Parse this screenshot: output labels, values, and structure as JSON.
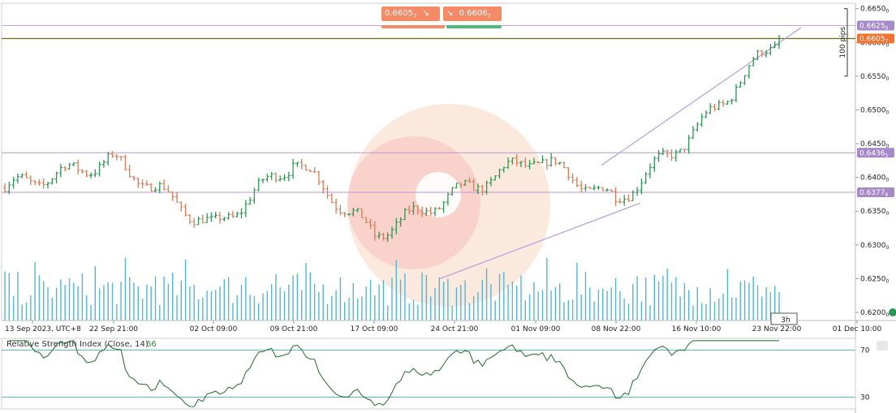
{
  "quote": {
    "sell_price": "0.6605",
    "sell_price_sup": "7",
    "buy_price": "0.6606",
    "buy_price_sup": "7",
    "sell_color": "#f58a67",
    "buy_color": "#f58a67",
    "sell_bar_color": "#f58a67",
    "buy_bar_color": "#4cba7a"
  },
  "price_labels": [
    {
      "price": 0.6625,
      "text": "0.6625",
      "sup": "0",
      "color": "#a68ac8"
    },
    {
      "price": 0.66057,
      "text": "0.6605",
      "sup": "7",
      "color": "#f2732e"
    },
    {
      "price": 0.64365,
      "text": "0.6436",
      "sup": "5",
      "color": "#a68ac8"
    },
    {
      "price": 0.63779,
      "text": "0.6377",
      "sup": "9",
      "color": "#a68ac8"
    }
  ],
  "y_ticks": [
    {
      "v": 0.665,
      "t": "0.6650",
      "s": "0"
    },
    {
      "v": 0.66,
      "t": "0.6600",
      "s": "0"
    },
    {
      "v": 0.655,
      "t": "0.6550",
      "s": "0"
    },
    {
      "v": 0.65,
      "t": "0.6500",
      "s": "0"
    },
    {
      "v": 0.645,
      "t": "0.6450",
      "s": "0"
    },
    {
      "v": 0.64,
      "t": "0.6400",
      "s": "0"
    },
    {
      "v": 0.635,
      "t": "0.6350",
      "s": "0"
    },
    {
      "v": 0.63,
      "t": "0.6300",
      "s": "0"
    },
    {
      "v": 0.625,
      "t": "0.6250",
      "s": "0"
    },
    {
      "v": 0.62,
      "t": "0.6200",
      "s": "0"
    }
  ],
  "ruler_label": "100 pips",
  "chart_data": {
    "type": "candlestick",
    "timezone": "UTC+8",
    "x_labels": [
      "13 Sep 2023, UTC+8",
      "22 Sep 21:00",
      "02 Oct 09:00",
      "09 Oct 21:00",
      "17 Oct 09:00",
      "24 Oct 21:00",
      "01 Nov 09:00",
      "08 Nov 22:00",
      "16 Nov 10:00",
      "23 Nov 22:00",
      "01 Dec 10:00"
    ],
    "current_bar_label": "3h",
    "ylim": [
      0.6188,
      0.6658
    ],
    "bull_color": "#2a9a52",
    "bear_color": "#e07a52",
    "volume_color": "#4fb8d8",
    "horizontal_lines": [
      {
        "price": 0.6625,
        "color": "#c9a6d6"
      },
      {
        "price": 0.66057,
        "color": "#6b6b10"
      },
      {
        "price": 0.64365,
        "color": "#b896cf"
      },
      {
        "price": 0.63779,
        "color": "#b896cf"
      }
    ],
    "trend_lines": [
      {
        "from": [
          "24 Oct 21:00",
          0.625
        ],
        "to": [
          "08 Nov 22:00",
          0.6362
        ],
        "color": "#b39ddb"
      },
      {
        "from": [
          "08 Nov 22:00",
          0.6418
        ],
        "to": [
          "23 Nov 22:00",
          0.6622
        ],
        "color": "#b39ddb"
      }
    ],
    "close_path": [
      {
        "x": "13 Sep 2023, UTC+8",
        "close": 0.6395
      },
      {
        "x": "22 Sep 21:00",
        "close": 0.6425
      },
      {
        "x": "02 Oct 09:00",
        "close": 0.6325
      },
      {
        "x": "09 Oct 21:00",
        "close": 0.6425
      },
      {
        "x": "17 Oct 09:00",
        "close": 0.6315
      },
      {
        "x": "24 Oct 21:00",
        "close": 0.6375
      },
      {
        "x": "01 Nov 09:00",
        "close": 0.643
      },
      {
        "x": "08 Nov 22:00",
        "close": 0.6365
      },
      {
        "x": "16 Nov 10:00",
        "close": 0.647
      },
      {
        "x": "23 Nov 22:00",
        "close": 0.6605
      }
    ],
    "last_close": 0.66057,
    "rsi": {
      "title": "Relative Strength Index (Close, 14)",
      "value": "66",
      "levels": [
        70,
        30
      ],
      "level_labels": [
        "70",
        "30"
      ],
      "ylim": [
        20,
        80
      ],
      "line_color": "#1f6b2b",
      "level_color": "#5bbfb0"
    }
  }
}
